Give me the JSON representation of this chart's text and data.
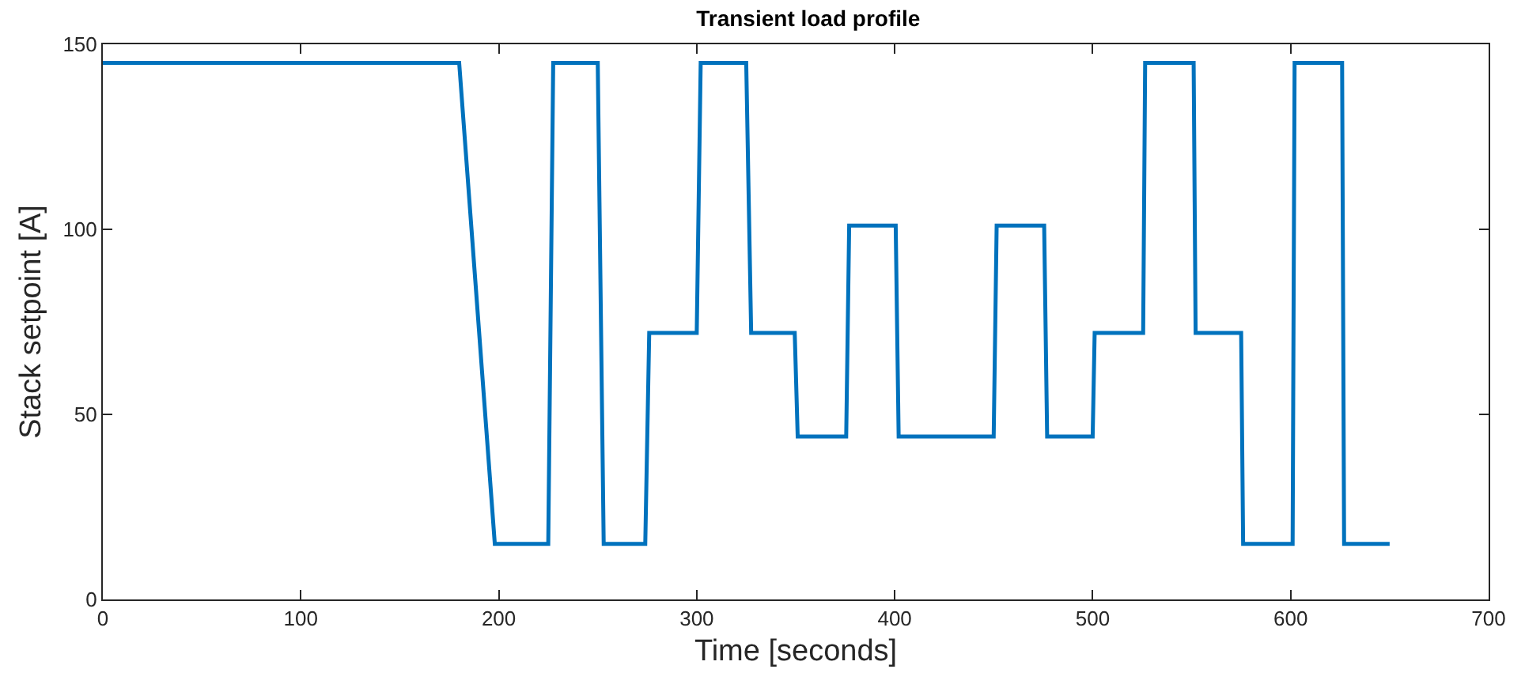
{
  "chart_data": {
    "type": "line",
    "title": "Transient load profile",
    "xlabel": "Time [seconds]",
    "ylabel": "Stack setpoint [A]",
    "x": [
      0,
      180,
      198,
      225,
      227.5,
      250,
      253,
      274,
      276,
      300,
      302,
      325,
      327.5,
      349.5,
      351,
      375.5,
      377,
      400.5,
      402,
      450,
      451.5,
      475.5,
      477,
      500,
      501,
      525.5,
      526.5,
      551,
      552,
      575,
      576,
      601,
      602,
      626,
      627,
      650
    ],
    "series": [
      {
        "color": "#0072bd",
        "values": [
          145,
          145,
          15,
          15,
          145,
          145,
          15,
          15,
          72,
          72,
          145,
          145,
          72,
          72,
          44,
          44,
          101,
          101,
          44,
          44,
          101,
          101,
          44,
          44,
          72,
          72,
          145,
          145,
          72,
          72,
          15,
          15,
          145,
          145,
          15,
          15
        ]
      }
    ],
    "xlim": [
      0,
      700
    ],
    "xticks": [
      0,
      100,
      200,
      300,
      400,
      500,
      600,
      700
    ],
    "ylim": [
      0,
      150
    ],
    "yticks": [
      0,
      50,
      100,
      150
    ],
    "marker": "none",
    "line_style": "solid"
  }
}
